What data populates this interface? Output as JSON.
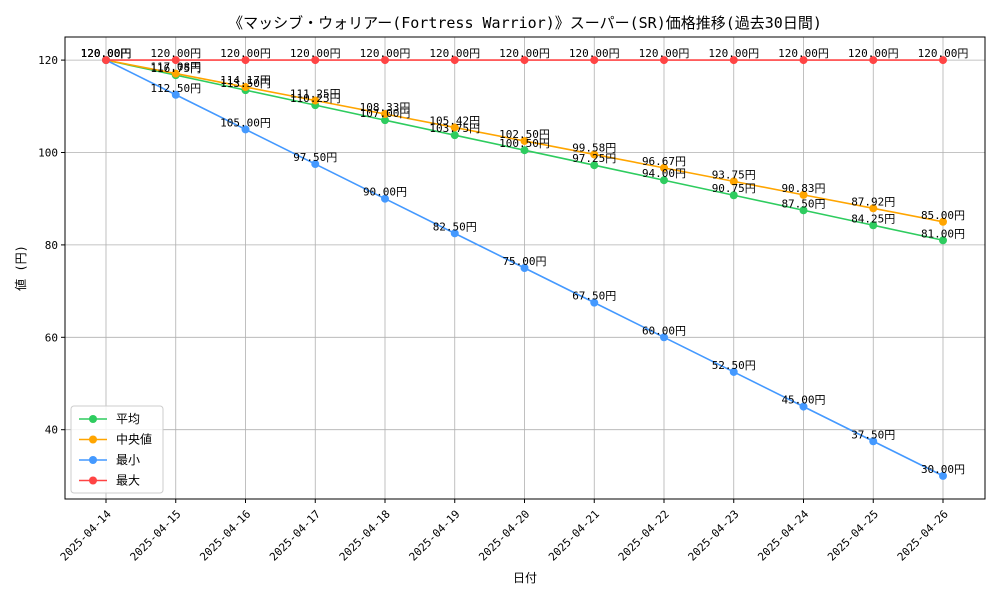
{
  "chart_data": {
    "type": "line",
    "title": "《マッシブ・ウォリアー(Fortress Warrior)》スーパー(SR)価格推移(過去30日間)",
    "xlabel": "日付",
    "ylabel": "値 (円)",
    "categories": [
      "2025-04-14",
      "2025-04-15",
      "2025-04-16",
      "2025-04-17",
      "2025-04-18",
      "2025-04-19",
      "2025-04-20",
      "2025-04-21",
      "2025-04-22",
      "2025-04-23",
      "2025-04-24",
      "2025-04-25",
      "2025-04-26"
    ],
    "ylim": [
      25,
      125
    ],
    "yticks": [
      40,
      60,
      80,
      100,
      120
    ],
    "grid": true,
    "legend_position": "lower-left",
    "value_suffix": "円",
    "series": [
      {
        "name": "平均",
        "color": "#2ecc5f",
        "values": [
          120.0,
          116.75,
          113.5,
          110.25,
          107.0,
          103.75,
          100.5,
          97.25,
          94.0,
          90.75,
          87.5,
          84.25,
          81.0
        ]
      },
      {
        "name": "中央値",
        "color": "#ffa500",
        "values": [
          120.0,
          117.08,
          114.17,
          111.25,
          108.33,
          105.42,
          102.5,
          99.58,
          96.67,
          93.75,
          90.83,
          87.92,
          85.0
        ]
      },
      {
        "name": "最小",
        "color": "#4499ff",
        "values": [
          120.0,
          112.5,
          105.0,
          97.5,
          90.0,
          82.5,
          75.0,
          67.5,
          60.0,
          52.5,
          45.0,
          37.5,
          30.0
        ]
      },
      {
        "name": "最大",
        "color": "#ff4444",
        "values": [
          120.0,
          120.0,
          120.0,
          120.0,
          120.0,
          120.0,
          120.0,
          120.0,
          120.0,
          120.0,
          120.0,
          120.0,
          120.0
        ]
      }
    ]
  }
}
